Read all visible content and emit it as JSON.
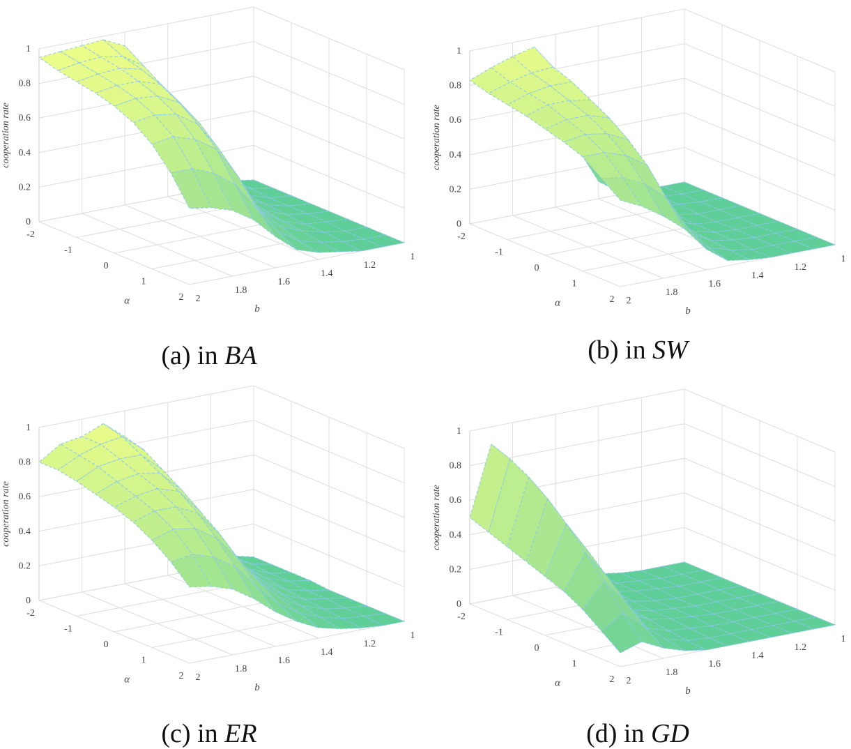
{
  "captions": [
    {
      "prefix": "(a) in ",
      "network": "BA"
    },
    {
      "prefix": "(b) in ",
      "network": "SW"
    },
    {
      "prefix": "(c) in ",
      "network": "ER"
    },
    {
      "prefix": "(d) in ",
      "network": "GD"
    }
  ],
  "colors": {
    "surface_low": "#5fce98",
    "surface_high": "#f2ff88",
    "edge": "#8cc7ee",
    "grid": "#dddddd",
    "tick_text": "#444444"
  },
  "chart_data": [
    {
      "type": "surface3d",
      "panel": "a",
      "zlabel": "cooperation rate",
      "xlabel": "α",
      "ylabel": "b",
      "alpha": [
        -2,
        -1.5,
        -1,
        -0.5,
        0,
        0.5,
        1,
        1.5,
        2
      ],
      "b": [
        1,
        1.1,
        1.2,
        1.3,
        1.4,
        1.5,
        1.6,
        1.7,
        1.8,
        1.9,
        2
      ],
      "alpha_ticks": [
        "-2",
        "-1",
        "0",
        "1",
        "2"
      ],
      "b_ticks": [
        "1",
        "1.2",
        "1.4",
        "1.6",
        "1.8",
        "2"
      ],
      "z_ticks": [
        "0",
        "0.2",
        "0.4",
        "0.6",
        "0.8",
        "1"
      ],
      "xlim": [
        -2,
        2
      ],
      "ylim": [
        1,
        2
      ],
      "zlim": [
        0,
        1
      ],
      "grid": true,
      "z": [
        [
          0.0,
          0.02,
          0.05,
          0.13,
          0.3,
          0.62,
          0.92,
          0.98,
          0.97,
          0.96,
          0.95
        ],
        [
          0.0,
          0.02,
          0.06,
          0.15,
          0.33,
          0.6,
          0.85,
          0.93,
          0.95,
          0.94,
          0.92
        ],
        [
          0.0,
          0.01,
          0.05,
          0.12,
          0.28,
          0.52,
          0.78,
          0.9,
          0.93,
          0.92,
          0.9
        ],
        [
          0.0,
          0.01,
          0.04,
          0.1,
          0.22,
          0.45,
          0.72,
          0.86,
          0.9,
          0.9,
          0.88
        ],
        [
          0.0,
          0.01,
          0.03,
          0.08,
          0.18,
          0.38,
          0.65,
          0.8,
          0.86,
          0.87,
          0.85
        ],
        [
          0.0,
          0.01,
          0.02,
          0.06,
          0.14,
          0.3,
          0.55,
          0.72,
          0.8,
          0.82,
          0.8
        ],
        [
          0.0,
          0.0,
          0.02,
          0.05,
          0.1,
          0.22,
          0.44,
          0.62,
          0.7,
          0.74,
          0.72
        ],
        [
          0.0,
          0.0,
          0.01,
          0.03,
          0.06,
          0.14,
          0.3,
          0.46,
          0.55,
          0.6,
          0.6
        ],
        [
          0.0,
          0.0,
          0.0,
          0.02,
          0.04,
          0.08,
          0.18,
          0.3,
          0.38,
          0.42,
          0.44
        ]
      ]
    },
    {
      "type": "surface3d",
      "panel": "b",
      "zlabel": "cooperation rate",
      "xlabel": "α",
      "ylabel": "b",
      "alpha": [
        -2,
        -1.5,
        -1,
        -0.5,
        0,
        0.5,
        1,
        1.5,
        2
      ],
      "b": [
        1,
        1.1,
        1.2,
        1.3,
        1.4,
        1.5,
        1.6,
        1.7,
        1.8,
        1.9,
        2
      ],
      "alpha_ticks": [
        "-2",
        "-1",
        "0",
        "1",
        "2"
      ],
      "b_ticks": [
        "1",
        "1.2",
        "1.4",
        "1.6",
        "1.8",
        "2"
      ],
      "z_ticks": [
        "0",
        "0.2",
        "0.4",
        "0.6",
        "0.8",
        "1"
      ],
      "xlim": [
        -2,
        2
      ],
      "ylim": [
        1,
        2
      ],
      "zlim": [
        0,
        1
      ],
      "grid": true,
      "z": [
        [
          0.0,
          0.0,
          0.01,
          0.03,
          0.1,
          0.32,
          0.74,
          0.95,
          0.92,
          0.88,
          0.83
        ],
        [
          0.0,
          0.0,
          0.01,
          0.03,
          0.09,
          0.3,
          0.7,
          0.88,
          0.87,
          0.84,
          0.8
        ],
        [
          0.0,
          0.0,
          0.01,
          0.02,
          0.08,
          0.26,
          0.64,
          0.84,
          0.84,
          0.82,
          0.78
        ],
        [
          0.0,
          0.0,
          0.0,
          0.02,
          0.06,
          0.22,
          0.56,
          0.78,
          0.8,
          0.8,
          0.76
        ],
        [
          0.0,
          0.0,
          0.0,
          0.01,
          0.05,
          0.18,
          0.48,
          0.72,
          0.76,
          0.76,
          0.73
        ],
        [
          0.0,
          0.0,
          0.0,
          0.01,
          0.04,
          0.14,
          0.4,
          0.64,
          0.7,
          0.72,
          0.7
        ],
        [
          0.0,
          0.0,
          0.0,
          0.01,
          0.03,
          0.1,
          0.3,
          0.54,
          0.62,
          0.66,
          0.66
        ],
        [
          0.0,
          0.0,
          0.0,
          0.0,
          0.02,
          0.06,
          0.2,
          0.4,
          0.5,
          0.56,
          0.58
        ],
        [
          0.0,
          0.0,
          0.0,
          0.0,
          0.01,
          0.03,
          0.12,
          0.26,
          0.36,
          0.44,
          0.5
        ]
      ]
    },
    {
      "type": "surface3d",
      "panel": "c",
      "zlabel": "cooperation rate",
      "xlabel": "α",
      "ylabel": "b",
      "alpha": [
        -2,
        -1.5,
        -1,
        -0.5,
        0,
        0.5,
        1,
        1.5,
        2
      ],
      "b": [
        1,
        1.1,
        1.2,
        1.3,
        1.4,
        1.5,
        1.6,
        1.7,
        1.8,
        1.9,
        2
      ],
      "alpha_ticks": [
        "-2",
        "-1",
        "0",
        "1",
        "2"
      ],
      "b_ticks": [
        "1",
        "1.2",
        "1.4",
        "1.6",
        "1.8",
        "2"
      ],
      "z_ticks": [
        "0",
        "0.2",
        "0.4",
        "0.6",
        "0.8",
        "1"
      ],
      "xlim": [
        -2,
        2
      ],
      "ylim": [
        1,
        2
      ],
      "zlim": [
        0,
        1
      ],
      "grid": true,
      "z": [
        [
          0.01,
          0.04,
          0.1,
          0.2,
          0.35,
          0.58,
          0.85,
          0.95,
          0.9,
          0.88,
          0.8
        ],
        [
          0.01,
          0.04,
          0.1,
          0.22,
          0.38,
          0.6,
          0.82,
          0.92,
          0.9,
          0.86,
          0.8
        ],
        [
          0.01,
          0.03,
          0.08,
          0.18,
          0.32,
          0.52,
          0.75,
          0.86,
          0.86,
          0.84,
          0.78
        ],
        [
          0.01,
          0.03,
          0.07,
          0.15,
          0.28,
          0.46,
          0.68,
          0.8,
          0.82,
          0.8,
          0.75
        ],
        [
          0.0,
          0.02,
          0.05,
          0.12,
          0.22,
          0.4,
          0.6,
          0.74,
          0.78,
          0.76,
          0.72
        ],
        [
          0.0,
          0.02,
          0.04,
          0.09,
          0.18,
          0.33,
          0.52,
          0.66,
          0.72,
          0.72,
          0.68
        ],
        [
          0.0,
          0.01,
          0.03,
          0.07,
          0.14,
          0.26,
          0.42,
          0.56,
          0.64,
          0.66,
          0.62
        ],
        [
          0.0,
          0.01,
          0.02,
          0.05,
          0.1,
          0.18,
          0.3,
          0.44,
          0.52,
          0.56,
          0.54
        ],
        [
          0.0,
          0.0,
          0.01,
          0.03,
          0.06,
          0.12,
          0.2,
          0.3,
          0.38,
          0.42,
          0.44
        ]
      ]
    },
    {
      "type": "surface3d",
      "panel": "d",
      "zlabel": "cooperation rate",
      "xlabel": "α",
      "ylabel": "b",
      "alpha": [
        -2,
        -1.5,
        -1,
        -0.5,
        0,
        0.5,
        1,
        1.5,
        2
      ],
      "b": [
        1,
        1.1,
        1.2,
        1.3,
        1.4,
        1.5,
        1.6,
        1.7,
        1.8,
        1.9,
        2
      ],
      "alpha_ticks": [
        "-2",
        "-1",
        "0",
        "1",
        "2"
      ],
      "b_ticks": [
        "1",
        "1.2",
        "1.4",
        "1.6",
        "1.8",
        "2"
      ],
      "z_ticks": [
        "0",
        "0.2",
        "0.4",
        "0.6",
        "0.8",
        "1"
      ],
      "xlim": [
        -2,
        2
      ],
      "ylim": [
        1,
        2
      ],
      "zlim": [
        0,
        1
      ],
      "grid": true,
      "z": [
        [
          0.0,
          0.0,
          0.0,
          0.01,
          0.03,
          0.06,
          0.12,
          0.3,
          0.72,
          0.9,
          0.5
        ],
        [
          0.0,
          0.0,
          0.0,
          0.01,
          0.02,
          0.05,
          0.1,
          0.26,
          0.66,
          0.86,
          0.46
        ],
        [
          0.0,
          0.0,
          0.0,
          0.01,
          0.02,
          0.04,
          0.08,
          0.22,
          0.6,
          0.8,
          0.42
        ],
        [
          0.0,
          0.0,
          0.0,
          0.0,
          0.01,
          0.03,
          0.06,
          0.18,
          0.52,
          0.72,
          0.38
        ],
        [
          0.0,
          0.0,
          0.0,
          0.0,
          0.01,
          0.02,
          0.05,
          0.14,
          0.44,
          0.62,
          0.34
        ],
        [
          0.0,
          0.0,
          0.0,
          0.0,
          0.01,
          0.02,
          0.04,
          0.1,
          0.34,
          0.5,
          0.3
        ],
        [
          0.0,
          0.0,
          0.0,
          0.0,
          0.0,
          0.01,
          0.02,
          0.06,
          0.24,
          0.38,
          0.24
        ],
        [
          0.0,
          0.0,
          0.0,
          0.0,
          0.0,
          0.0,
          0.01,
          0.04,
          0.14,
          0.24,
          0.16
        ],
        [
          0.0,
          0.0,
          0.0,
          0.0,
          0.0,
          0.0,
          0.0,
          0.02,
          0.06,
          0.12,
          0.08
        ]
      ]
    }
  ]
}
